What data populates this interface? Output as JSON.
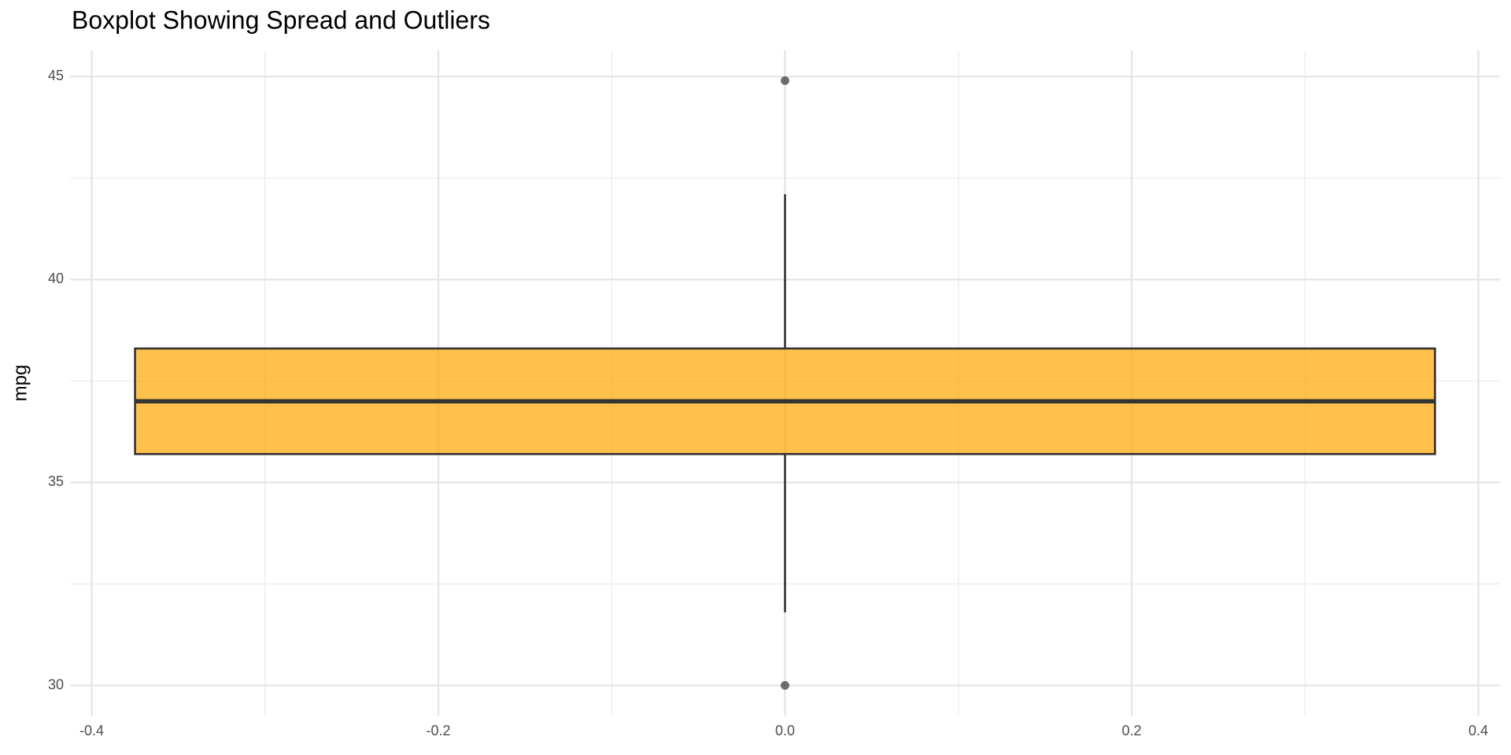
{
  "chart_data": {
    "type": "box",
    "title": "Boxplot Showing Spread and Outliers",
    "y_label": "mpg",
    "boxes": [
      {
        "x": 0,
        "width": 0.75,
        "whisker_low": 31.8,
        "q1": 35.7,
        "median": 37.0,
        "q3": 38.3,
        "whisker_high": 42.1,
        "outliers": [
          30.0,
          44.9
        ]
      }
    ],
    "color": "#ffa500",
    "alpha": 0.7,
    "xlim": [
      -0.4125,
      0.4125
    ],
    "xticks": [
      -0.4,
      -0.2,
      {
        "value": 0,
        "label": "0.0"
      },
      0.2,
      0.4
    ],
    "ylim": [
      29.255,
      45.645
    ],
    "yticks": [
      30,
      35,
      40,
      45
    ],
    "grid": true
  }
}
